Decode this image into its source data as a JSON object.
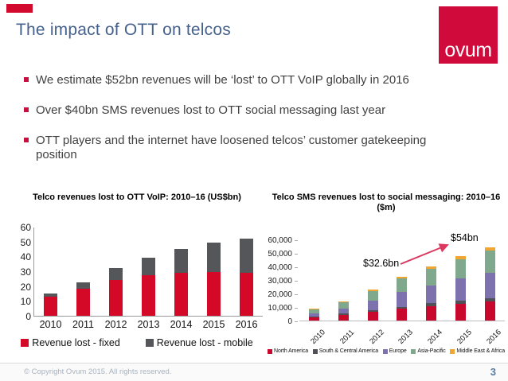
{
  "slide": {
    "title": "The impact of OTT on telcos",
    "logo_text": "ovum",
    "brand_red": "#D10A3C",
    "title_color": "#46618C",
    "bullets": [
      "We estimate $52bn revenues will be ‘lost’ to OTT VoIP globally in 2016",
      "Over $40bn SMS revenues lost to OTT social messaging last year",
      "OTT players and the internet have loosened telcos’ customer gatekeeping position"
    ],
    "footer": {
      "copyright": "© Copyright Ovum 2015. All rights reserved.",
      "page_number": "3"
    }
  },
  "chart_data": [
    {
      "type": "bar",
      "stacked": true,
      "title": "Telco revenues lost to OTT VoIP: 2010–16 (US$bn)",
      "categories": [
        "2010",
        "2011",
        "2012",
        "2013",
        "2014",
        "2015",
        "2016"
      ],
      "series": [
        {
          "name": "Revenue lost - fixed",
          "color": "#D40928",
          "values": [
            13,
            18.5,
            24,
            27.5,
            29,
            29.5,
            29
          ]
        },
        {
          "name": "Revenue lost - mobile",
          "color": "#54565A",
          "values": [
            2,
            4,
            8,
            11.5,
            16,
            20,
            23
          ]
        }
      ],
      "ylim": [
        0,
        60
      ],
      "yticks": [
        "0",
        "10",
        "20",
        "30",
        "40",
        "50",
        "60"
      ],
      "grid": false,
      "legend_position": "bottom"
    },
    {
      "type": "bar",
      "stacked": true,
      "title": "Telco SMS revenues lost to social messaging: 2010–16 ($m)",
      "categories": [
        "2010",
        "2011",
        "2012",
        "2013",
        "2014",
        "2015",
        "2016"
      ],
      "series": [
        {
          "name": "North America",
          "color": "#C9082E",
          "values": [
            2300,
            4300,
            6500,
            8700,
            10700,
            12300,
            14000
          ]
        },
        {
          "name": "South & Central America",
          "color": "#4F5156",
          "values": [
            700,
            800,
            1200,
            1500,
            2300,
            2700,
            2500
          ]
        },
        {
          "name": "Europe",
          "color": "#7E72AE",
          "values": [
            2500,
            4000,
            7300,
            10800,
            13000,
            16000,
            19000
          ]
        },
        {
          "name": "Asia-Pacific",
          "color": "#7FA88D",
          "values": [
            2800,
            4200,
            7000,
            10000,
            12000,
            14500,
            16000
          ]
        },
        {
          "name": "Middle East & Africa",
          "color": "#F0A632",
          "values": [
            600,
            700,
            1000,
            1600,
            2000,
            2000,
            2500
          ]
        }
      ],
      "ylim": [
        0,
        60000
      ],
      "yticks": [
        "0",
        "10,000",
        "20,000",
        "30,000",
        "40,000",
        "50,000",
        "60,000"
      ],
      "grid": false,
      "legend_position": "bottom",
      "annotations": [
        {
          "text": "$32.6bn",
          "x": "2013",
          "y": 40000
        },
        {
          "text": "$54bn",
          "x": "2016",
          "y": 58000
        }
      ],
      "arrow_color": "#DB3960"
    }
  ]
}
